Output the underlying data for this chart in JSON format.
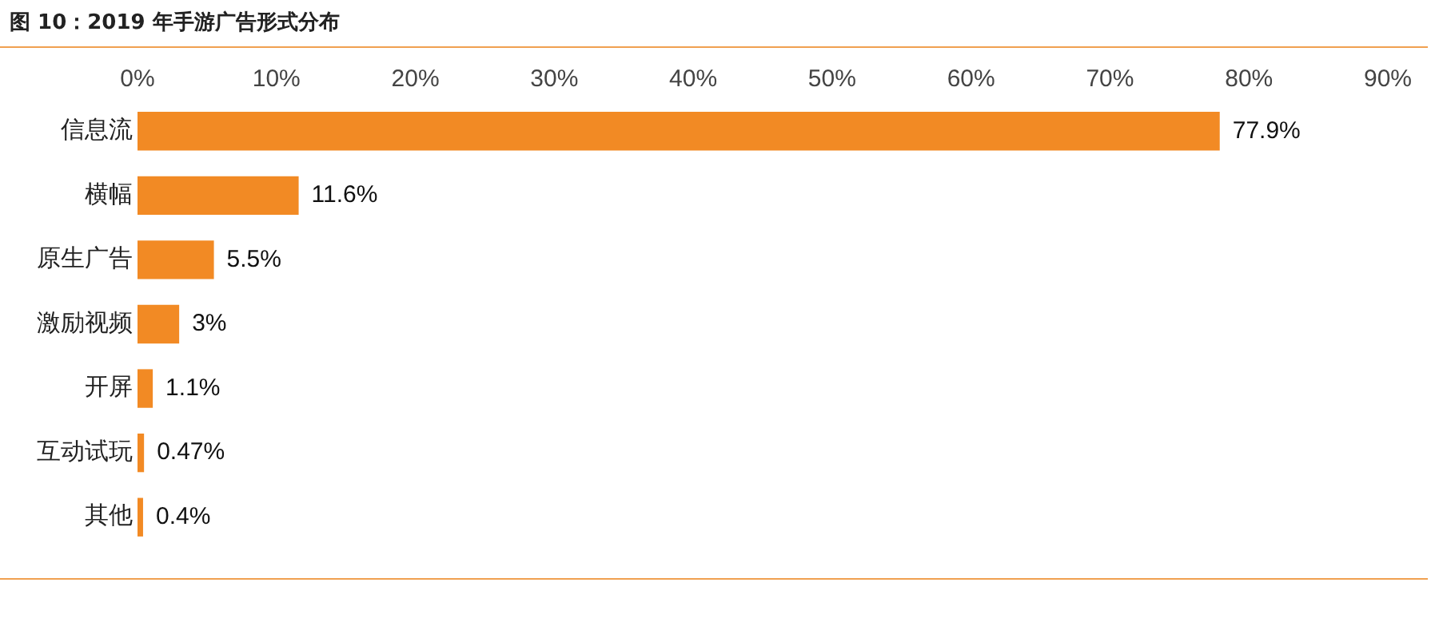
{
  "chart_data": {
    "type": "bar",
    "title": "图 10：2019 年手游广告形式分布",
    "orientation": "horizontal",
    "categories": [
      "信息流",
      "横幅",
      "原生广告",
      "激励视频",
      "开屏",
      "互动试玩",
      "其他"
    ],
    "values": [
      77.9,
      11.6,
      5.5,
      3,
      1.1,
      0.47,
      0.4
    ],
    "value_labels": [
      "77.9%",
      "11.6%",
      "5.5%",
      "3%",
      "1.1%",
      "0.47%",
      "0.4%"
    ],
    "color": "#f28a24",
    "xlim": [
      0,
      90
    ],
    "xticks": [
      {
        "value": 0,
        "label": "0%"
      },
      {
        "value": 10,
        "label": "10%"
      },
      {
        "value": 20,
        "label": "20%"
      },
      {
        "value": 30,
        "label": "30%"
      },
      {
        "value": 40,
        "label": "40%"
      },
      {
        "value": 50,
        "label": "50%"
      },
      {
        "value": 60,
        "label": "60%"
      },
      {
        "value": 70,
        "label": "70%"
      },
      {
        "value": 80,
        "label": "80%"
      },
      {
        "value": 90,
        "label": "90%"
      }
    ],
    "grid": false,
    "legend": false
  }
}
